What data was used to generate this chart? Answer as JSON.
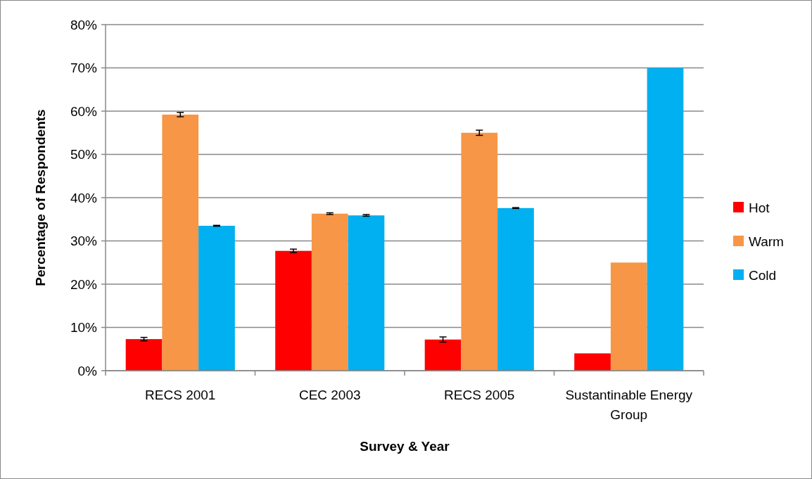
{
  "chart_data": {
    "type": "bar",
    "xlabel": "Survey & Year",
    "ylabel": "Percentage of Respondents",
    "categories": [
      "RECS 2001",
      "CEC 2003",
      "RECS 2005",
      "Sustantinable Energy Group"
    ],
    "series": [
      {
        "name": "Hot",
        "color": "#ff0000",
        "values": [
          7.3,
          27.7,
          7.2,
          4
        ],
        "errors": [
          0.4,
          0.4,
          0.6,
          null
        ]
      },
      {
        "name": "Warm",
        "color": "#f79646",
        "values": [
          59.2,
          36.3,
          55.0,
          25
        ],
        "errors": [
          0.5,
          0.2,
          0.6,
          null
        ]
      },
      {
        "name": "Cold",
        "color": "#00b0f0",
        "values": [
          33.5,
          35.9,
          37.6,
          70
        ],
        "errors": [
          0.1,
          0.2,
          0.1,
          null
        ]
      }
    ],
    "ylim": [
      0,
      80
    ],
    "yticks": [
      {
        "value": 0,
        "label": "0%"
      },
      {
        "value": 10,
        "label": "10%"
      },
      {
        "value": 20,
        "label": "20%"
      },
      {
        "value": 30,
        "label": "30%"
      },
      {
        "value": 40,
        "label": "40%"
      },
      {
        "value": 50,
        "label": "50%"
      },
      {
        "value": 60,
        "label": "60%"
      },
      {
        "value": 70,
        "label": "70%"
      },
      {
        "value": 80,
        "label": "80%"
      }
    ],
    "grid": "y",
    "legend": "right"
  }
}
